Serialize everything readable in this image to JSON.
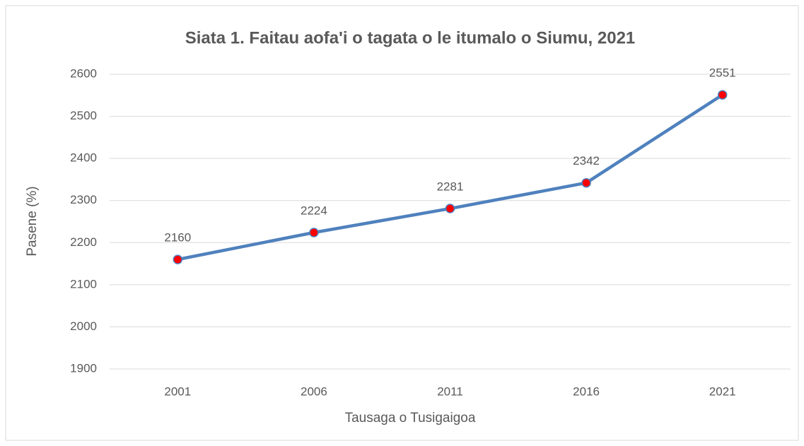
{
  "chart_data": {
    "type": "line",
    "title": "Siata 1. Faitau aofa'i o tagata o le itumalo o Siumu, 2021",
    "x_label": "Tausaga o Tusigaigoa",
    "y_label": "Pasene (%)",
    "categories": [
      "2001",
      "2006",
      "2011",
      "2016",
      "2021"
    ],
    "series": [
      {
        "name": "Faitau aofa'i",
        "color": "#4f81bd",
        "marker_color": "#ff0000",
        "values": [
          2160,
          2224,
          2281,
          2342,
          2551
        ]
      }
    ],
    "ylim": [
      1900,
      2600
    ],
    "yticks": [
      1900,
      2000,
      2100,
      2200,
      2300,
      2400,
      2500,
      2600
    ],
    "grid": true,
    "data_labels": true
  }
}
